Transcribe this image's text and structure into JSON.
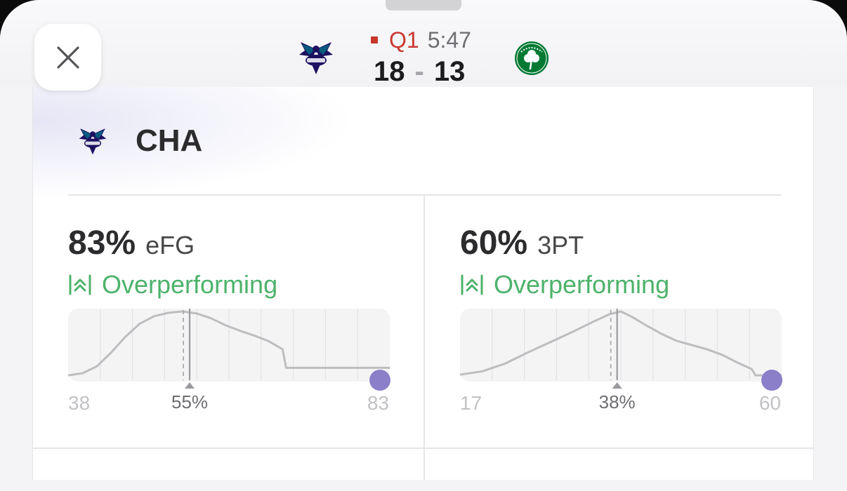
{
  "game": {
    "home_team_logo": "hornets-logo",
    "away_team_logo": "celtics-logo",
    "quarter": "Q1",
    "clock": "5:47",
    "home_score": "18",
    "separator": "-",
    "away_score": "13",
    "live_color": "#c8372d"
  },
  "close_icon": "close-icon",
  "team": {
    "abbr": "CHA",
    "logo": "hornets-logo"
  },
  "colors": {
    "overperforming": "#4db26a",
    "marker": "#8a7fc8",
    "curve": "#bdbdc0"
  },
  "panels": [
    {
      "value": "83%",
      "label": "eFG",
      "status": "Overperforming",
      "status_icon": "double-chevron-up-icon",
      "min_label": "38",
      "mean_label": "55%",
      "max_label": "83",
      "chart_data": {
        "type": "area",
        "x_range": [
          38,
          83
        ],
        "mean": 55,
        "current": 83,
        "curve": [
          [
            38,
            0.07
          ],
          [
            40,
            0.1
          ],
          [
            42,
            0.2
          ],
          [
            44,
            0.4
          ],
          [
            46,
            0.63
          ],
          [
            48,
            0.82
          ],
          [
            50,
            0.93
          ],
          [
            52,
            0.98
          ],
          [
            54,
            1.0
          ],
          [
            56,
            0.97
          ],
          [
            58,
            0.9
          ],
          [
            60,
            0.8
          ],
          [
            62,
            0.72
          ],
          [
            64,
            0.65
          ],
          [
            66,
            0.57
          ],
          [
            68,
            0.45
          ],
          [
            68.5,
            0.18
          ],
          [
            83,
            0.18
          ]
        ]
      }
    },
    {
      "value": "60%",
      "label": "3PT",
      "status": "Overperforming",
      "status_icon": "double-chevron-up-icon",
      "min_label": "17",
      "mean_label": "38%",
      "max_label": "60",
      "chart_data": {
        "type": "area",
        "x_range": [
          17,
          60
        ],
        "mean": 38,
        "current": 60,
        "curve": [
          [
            17,
            0.08
          ],
          [
            20,
            0.13
          ],
          [
            23,
            0.24
          ],
          [
            26,
            0.4
          ],
          [
            29,
            0.55
          ],
          [
            32,
            0.7
          ],
          [
            35,
            0.86
          ],
          [
            37,
            0.96
          ],
          [
            38.5,
            1.0
          ],
          [
            40,
            0.92
          ],
          [
            42,
            0.79
          ],
          [
            44,
            0.67
          ],
          [
            46,
            0.57
          ],
          [
            48,
            0.51
          ],
          [
            50,
            0.45
          ],
          [
            52,
            0.37
          ],
          [
            54,
            0.26
          ],
          [
            56,
            0.16
          ],
          [
            56.5,
            0.07
          ],
          [
            60,
            0.07
          ]
        ]
      }
    }
  ]
}
